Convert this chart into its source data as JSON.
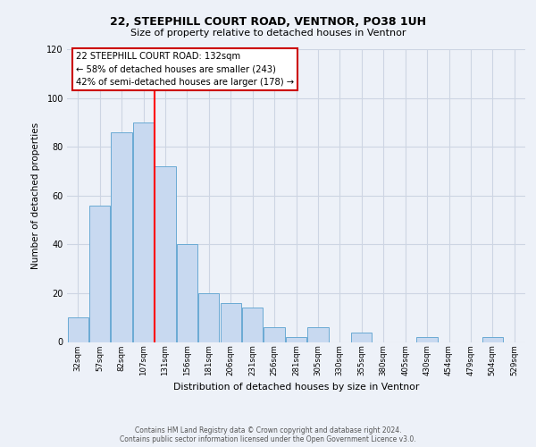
{
  "title": "22, STEEPHILL COURT ROAD, VENTNOR, PO38 1UH",
  "subtitle": "Size of property relative to detached houses in Ventnor",
  "xlabel": "Distribution of detached houses by size in Ventnor",
  "ylabel": "Number of detached properties",
  "categories": [
    "32sqm",
    "57sqm",
    "82sqm",
    "107sqm",
    "131sqm",
    "156sqm",
    "181sqm",
    "206sqm",
    "231sqm",
    "256sqm",
    "281sqm",
    "305sqm",
    "330sqm",
    "355sqm",
    "380sqm",
    "405sqm",
    "430sqm",
    "454sqm",
    "479sqm",
    "504sqm",
    "529sqm"
  ],
  "values": [
    10,
    56,
    86,
    90,
    72,
    40,
    20,
    16,
    14,
    6,
    2,
    6,
    0,
    4,
    0,
    0,
    2,
    0,
    0,
    2,
    0
  ],
  "bar_color": "#c8d9f0",
  "bar_edge_color": "#6aaad4",
  "grid_color": "#cdd5e3",
  "background_color": "#edf1f8",
  "plot_bg_color": "#edf1f8",
  "red_line_x": 3.5,
  "annotation_title": "22 STEEPHILL COURT ROAD: 132sqm",
  "annotation_line1": "← 58% of detached houses are smaller (243)",
  "annotation_line2": "42% of semi-detached houses are larger (178) →",
  "annotation_box_facecolor": "#ffffff",
  "annotation_border_color": "#cc0000",
  "ylim": [
    0,
    120
  ],
  "yticks": [
    0,
    20,
    40,
    60,
    80,
    100,
    120
  ],
  "footnote1": "Contains HM Land Registry data © Crown copyright and database right 2024.",
  "footnote2": "Contains public sector information licensed under the Open Government Licence v3.0."
}
